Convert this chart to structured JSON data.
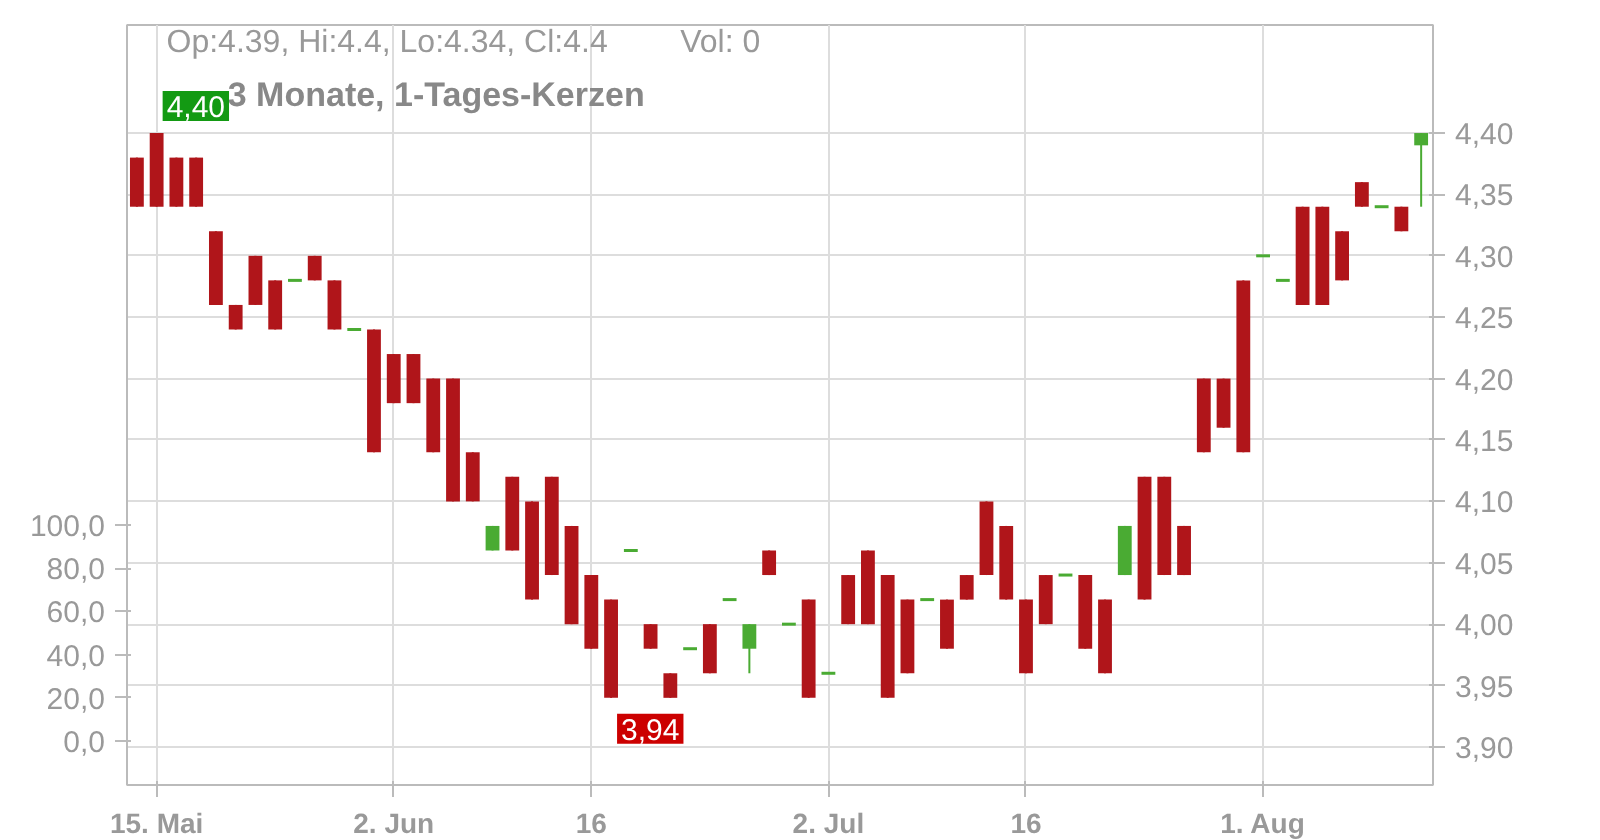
{
  "chart_data": {
    "type": "candlestick",
    "title": "3 Monate, 1-Tages-Kerzen",
    "categories": [
      null,
      "15. Mai",
      null,
      null,
      null,
      null,
      null,
      null,
      null,
      null,
      null,
      null,
      null,
      "2. Jun",
      null,
      null,
      null,
      null,
      null,
      null,
      null,
      null,
      null,
      "16",
      null,
      null,
      null,
      null,
      null,
      null,
      null,
      null,
      null,
      null,
      null,
      "2. Jul",
      null,
      null,
      null,
      null,
      null,
      null,
      null,
      null,
      null,
      "16",
      null,
      null,
      null,
      null,
      null,
      null,
      null,
      null,
      null,
      null,
      null,
      "1. Aug",
      null,
      null,
      null,
      null,
      null,
      null,
      null,
      null
    ],
    "ohlc": [
      [
        4.38,
        4.38,
        4.34,
        4.34
      ],
      [
        4.4,
        4.4,
        4.34,
        4.34
      ],
      [
        4.38,
        4.38,
        4.34,
        4.34
      ],
      [
        4.38,
        4.38,
        4.34,
        4.34
      ],
      [
        4.32,
        4.32,
        4.26,
        4.26
      ],
      [
        4.26,
        4.26,
        4.24,
        4.24
      ],
      [
        4.3,
        4.3,
        4.26,
        4.26
      ],
      [
        4.28,
        4.28,
        4.24,
        4.24
      ],
      [
        4.28,
        4.28,
        4.28,
        4.28
      ],
      [
        4.3,
        4.3,
        4.28,
        4.28
      ],
      [
        4.28,
        4.28,
        4.24,
        4.24
      ],
      [
        4.24,
        4.24,
        4.24,
        4.24
      ],
      [
        4.24,
        4.24,
        4.14,
        4.14
      ],
      [
        4.22,
        4.22,
        4.18,
        4.18
      ],
      [
        4.22,
        4.22,
        4.18,
        4.18
      ],
      [
        4.2,
        4.2,
        4.14,
        4.14
      ],
      [
        4.2,
        4.2,
        4.1,
        4.1
      ],
      [
        4.14,
        4.14,
        4.1,
        4.1
      ],
      [
        4.06,
        4.08,
        4.06,
        4.08
      ],
      [
        4.12,
        4.12,
        4.06,
        4.06
      ],
      [
        4.1,
        4.1,
        4.02,
        4.02
      ],
      [
        4.12,
        4.12,
        4.04,
        4.04
      ],
      [
        4.08,
        4.08,
        4.0,
        4.0
      ],
      [
        4.04,
        4.04,
        3.98,
        3.98
      ],
      [
        4.02,
        4.02,
        3.94,
        3.94
      ],
      [
        4.06,
        4.06,
        4.06,
        4.06
      ],
      [
        4.0,
        4.0,
        3.98,
        3.98
      ],
      [
        3.96,
        3.96,
        3.94,
        3.94
      ],
      [
        3.98,
        3.98,
        3.98,
        3.98
      ],
      [
        4.0,
        4.0,
        3.96,
        3.96
      ],
      [
        4.02,
        4.02,
        4.02,
        4.02
      ],
      [
        3.98,
        4.0,
        3.96,
        4.0
      ],
      [
        4.06,
        4.06,
        4.04,
        4.04
      ],
      [
        4.0,
        4.0,
        4.0,
        4.0
      ],
      [
        4.02,
        4.02,
        3.94,
        3.94
      ],
      [
        3.96,
        3.96,
        3.96,
        3.96
      ],
      [
        4.04,
        4.04,
        4.0,
        4.0
      ],
      [
        4.06,
        4.06,
        4.0,
        4.0
      ],
      [
        4.04,
        4.04,
        3.94,
        3.94
      ],
      [
        4.02,
        4.02,
        3.96,
        3.96
      ],
      [
        4.02,
        4.02,
        4.02,
        4.02
      ],
      [
        4.02,
        4.02,
        3.98,
        3.98
      ],
      [
        4.04,
        4.04,
        4.02,
        4.02
      ],
      [
        4.1,
        4.1,
        4.04,
        4.04
      ],
      [
        4.08,
        4.08,
        4.02,
        4.02
      ],
      [
        4.02,
        4.02,
        3.96,
        3.96
      ],
      [
        4.04,
        4.04,
        4.0,
        4.0
      ],
      [
        4.04,
        4.04,
        4.04,
        4.04
      ],
      [
        4.04,
        4.04,
        3.98,
        3.98
      ],
      [
        4.02,
        4.02,
        3.96,
        3.96
      ],
      [
        4.04,
        4.08,
        4.04,
        4.08
      ],
      [
        4.12,
        4.12,
        4.02,
        4.02
      ],
      [
        4.12,
        4.12,
        4.04,
        4.04
      ],
      [
        4.08,
        4.08,
        4.04,
        4.04
      ],
      [
        4.2,
        4.2,
        4.14,
        4.14
      ],
      [
        4.2,
        4.2,
        4.16,
        4.16
      ],
      [
        4.28,
        4.28,
        4.14,
        4.14
      ],
      [
        4.3,
        4.3,
        4.3,
        4.3
      ],
      [
        4.28,
        4.28,
        4.28,
        4.28
      ],
      [
        4.34,
        4.34,
        4.26,
        4.26
      ],
      [
        4.34,
        4.34,
        4.26,
        4.26
      ],
      [
        4.32,
        4.32,
        4.28,
        4.28
      ],
      [
        4.36,
        4.36,
        4.34,
        4.34
      ],
      [
        4.34,
        4.34,
        4.34,
        4.34
      ],
      [
        4.34,
        4.34,
        4.32,
        4.32
      ],
      [
        4.39,
        4.4,
        4.34,
        4.4
      ]
    ],
    "colors": [
      "#b0151a",
      "#b0151a",
      "#b0151a",
      "#b0151a",
      "#b0151a",
      "#b0151a",
      "#b0151a",
      "#b0151a",
      "#4aab33",
      "#b0151a",
      "#b0151a",
      "#4aab33",
      "#b0151a",
      "#b0151a",
      "#b0151a",
      "#b0151a",
      "#b0151a",
      "#b0151a",
      "#4aab33",
      "#b0151a",
      "#b0151a",
      "#b0151a",
      "#b0151a",
      "#b0151a",
      "#b0151a",
      "#4aab33",
      "#b0151a",
      "#b0151a",
      "#4aab33",
      "#b0151a",
      "#4aab33",
      "#4aab33",
      "#b0151a",
      "#4aab33",
      "#b0151a",
      "#4aab33",
      "#b0151a",
      "#b0151a",
      "#b0151a",
      "#b0151a",
      "#4aab33",
      "#b0151a",
      "#b0151a",
      "#b0151a",
      "#b0151a",
      "#b0151a",
      "#b0151a",
      "#4aab33",
      "#b0151a",
      "#b0151a",
      "#4aab33",
      "#b0151a",
      "#b0151a",
      "#b0151a",
      "#b0151a",
      "#b0151a",
      "#b0151a",
      "#4aab33",
      "#4aab33",
      "#b0151a",
      "#b0151a",
      "#b0151a",
      "#b0151a",
      "#4aab33",
      "#b0151a",
      "#4aab33"
    ],
    "ylim": [
      3.869,
      4.488
    ],
    "yticks": [
      {
        "value": 3.9,
        "label": "3,90"
      },
      {
        "value": 3.95,
        "label": "3,95"
      },
      {
        "value": 4.0,
        "label": "4,00"
      },
      {
        "value": 4.05,
        "label": "4,05"
      },
      {
        "value": 4.1,
        "label": "4,10"
      },
      {
        "value": 4.15,
        "label": "4,15"
      },
      {
        "value": 4.2,
        "label": "4,20"
      },
      {
        "value": 4.25,
        "label": "4,25"
      },
      {
        "value": 4.3,
        "label": "4,30"
      },
      {
        "value": 4.35,
        "label": "4,35"
      },
      {
        "value": 4.4,
        "label": "4,40"
      }
    ],
    "y2lim": [
      -20.4,
      331.5
    ],
    "y2ticks": [
      {
        "value": 0,
        "label": "0,0"
      },
      {
        "value": 20,
        "label": "20,0"
      },
      {
        "value": 40,
        "label": "40,0"
      },
      {
        "value": 60,
        "label": "60,0"
      },
      {
        "value": 80,
        "label": "80,0"
      },
      {
        "value": 100,
        "label": "100,0"
      }
    ],
    "grid": true,
    "annotations": [
      "Op:4.39, Hi:4.4, Lo:4.34, Cl:4.4",
      "Vol: 0",
      {
        "text": "4,40",
        "x": "15. Mai",
        "y": 4.4
      },
      "3,94"
    ]
  }
}
